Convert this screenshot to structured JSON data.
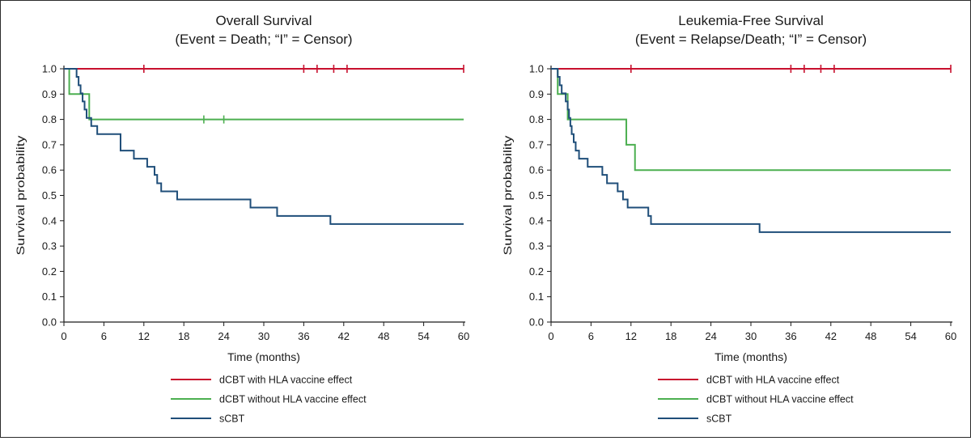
{
  "colors": {
    "dcbt_with": "#c8102e",
    "dcbt_without": "#4caf50",
    "scbt": "#1f4e79",
    "axis": "#1a1a1a"
  },
  "chart_data": [
    {
      "type": "line",
      "title": "Overall Survival",
      "subtitle": "(Event = Death; “I” = Censor)",
      "xlabel": "Time (months)",
      "ylabel": "Survival probability",
      "xlim": [
        0,
        60
      ],
      "ylim": [
        0,
        1
      ],
      "xticks": [
        "0",
        "6",
        "12",
        "18",
        "24",
        "30",
        "36",
        "42",
        "48",
        "54",
        "60"
      ],
      "yticks": [
        "0.0",
        "0.1",
        "0.2",
        "0.3",
        "0.4",
        "0.5",
        "0.6",
        "0.7",
        "0.8",
        "0.9",
        "1.0"
      ],
      "grid": false,
      "legend": "bottom",
      "series": [
        {
          "name": "dCBT with HLA vaccine effect",
          "color_key": "dcbt_with",
          "steps": [
            [
              0,
              1.0
            ],
            [
              60,
              1.0
            ]
          ],
          "censors": [
            12,
            36,
            38,
            40.5,
            42.5,
            60
          ]
        },
        {
          "name": "dCBT without HLA vaccine effect",
          "color_key": "dcbt_without",
          "steps": [
            [
              0,
              1.0
            ],
            [
              0.8,
              0.9
            ],
            [
              3.8,
              0.8
            ],
            [
              60,
              0.8
            ]
          ],
          "censors": [
            21,
            24
          ]
        },
        {
          "name": "sCBT",
          "color_key": "scbt",
          "steps": [
            [
              0,
              1.0
            ],
            [
              1.9,
              0.968
            ],
            [
              2.2,
              0.935
            ],
            [
              2.5,
              0.903
            ],
            [
              2.8,
              0.871
            ],
            [
              3.1,
              0.839
            ],
            [
              3.4,
              0.806
            ],
            [
              4.1,
              0.774
            ],
            [
              5.0,
              0.742
            ],
            [
              8.5,
              0.677
            ],
            [
              10.5,
              0.645
            ],
            [
              12.5,
              0.613
            ],
            [
              13.6,
              0.581
            ],
            [
              14.0,
              0.548
            ],
            [
              14.6,
              0.516
            ],
            [
              17.0,
              0.484
            ],
            [
              28.0,
              0.452
            ],
            [
              32.0,
              0.419
            ],
            [
              40.0,
              0.387
            ],
            [
              60,
              0.387
            ]
          ],
          "censors": []
        }
      ]
    },
    {
      "type": "line",
      "title": "Leukemia-Free Survival",
      "subtitle": "(Event = Relapse/Death; “I” = Censor)",
      "xlabel": "Time (months)",
      "ylabel": "Survival probability",
      "xlim": [
        0,
        60
      ],
      "ylim": [
        0,
        1
      ],
      "xticks": [
        "0",
        "6",
        "12",
        "18",
        "24",
        "30",
        "36",
        "42",
        "48",
        "54",
        "60"
      ],
      "yticks": [
        "0.0",
        "0.1",
        "0.2",
        "0.3",
        "0.4",
        "0.5",
        "0.6",
        "0.7",
        "0.8",
        "0.9",
        "1.0"
      ],
      "grid": false,
      "legend": "bottom",
      "series": [
        {
          "name": "dCBT with HLA vaccine effect",
          "color_key": "dcbt_with",
          "steps": [
            [
              0,
              1.0
            ],
            [
              60,
              1.0
            ]
          ],
          "censors": [
            12,
            36,
            38,
            40.5,
            42.5,
            60
          ]
        },
        {
          "name": "dCBT without HLA vaccine effect",
          "color_key": "dcbt_without",
          "steps": [
            [
              0,
              1.0
            ],
            [
              1.0,
              0.9
            ],
            [
              2.5,
              0.8
            ],
            [
              11.3,
              0.7
            ],
            [
              12.6,
              0.6
            ],
            [
              60,
              0.6
            ]
          ],
          "censors": []
        },
        {
          "name": "sCBT",
          "color_key": "scbt",
          "steps": [
            [
              0,
              1.0
            ],
            [
              1.0,
              0.968
            ],
            [
              1.3,
              0.935
            ],
            [
              1.6,
              0.903
            ],
            [
              2.2,
              0.871
            ],
            [
              2.5,
              0.839
            ],
            [
              2.7,
              0.806
            ],
            [
              2.9,
              0.774
            ],
            [
              3.1,
              0.742
            ],
            [
              3.4,
              0.71
            ],
            [
              3.7,
              0.677
            ],
            [
              4.2,
              0.645
            ],
            [
              5.5,
              0.613
            ],
            [
              7.7,
              0.581
            ],
            [
              8.4,
              0.548
            ],
            [
              10.0,
              0.516
            ],
            [
              10.8,
              0.484
            ],
            [
              11.5,
              0.452
            ],
            [
              14.6,
              0.419
            ],
            [
              15.0,
              0.387
            ],
            [
              31.3,
              0.355
            ],
            [
              60,
              0.355
            ]
          ],
          "censors": []
        }
      ]
    }
  ]
}
